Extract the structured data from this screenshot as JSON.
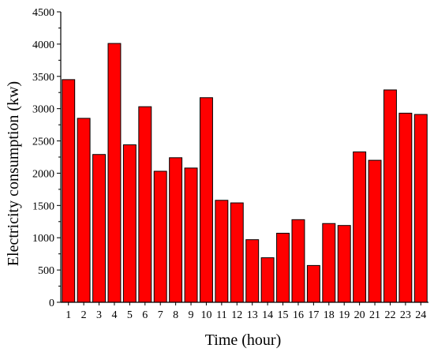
{
  "chart_data": {
    "type": "bar",
    "title": "",
    "xlabel": "Time (hour)",
    "ylabel": "Electricity consumption  (kw)",
    "categories": [
      "1",
      "2",
      "3",
      "4",
      "5",
      "6",
      "7",
      "8",
      "9",
      "10",
      "11",
      "12",
      "13",
      "14",
      "15",
      "16",
      "17",
      "18",
      "19",
      "20",
      "21",
      "22",
      "23",
      "24"
    ],
    "values": [
      3450,
      2850,
      2290,
      4010,
      2440,
      3030,
      2030,
      2240,
      2080,
      3170,
      1580,
      1540,
      970,
      690,
      1070,
      1280,
      570,
      1220,
      1190,
      2330,
      2200,
      3290,
      2930,
      2910
    ],
    "ylim": [
      0,
      4500
    ],
    "yticks": [
      0,
      500,
      1000,
      1500,
      2000,
      2500,
      3000,
      3500,
      4000,
      4500
    ],
    "grid": false,
    "legend": "none",
    "bar_color": "#ff0000",
    "edge_color": "#000000"
  }
}
